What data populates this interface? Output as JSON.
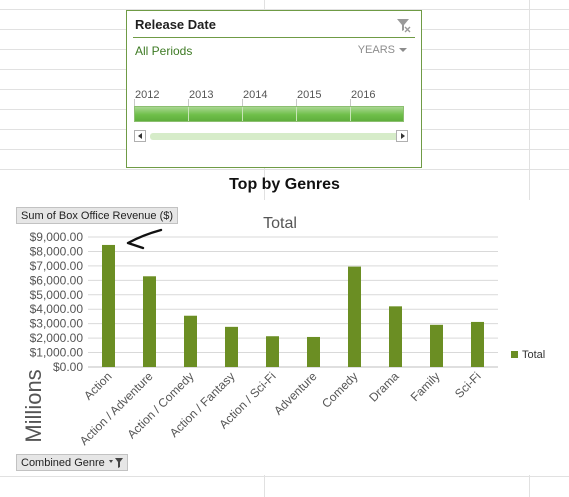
{
  "slicer": {
    "title": "Release Date",
    "period_label": "All Periods",
    "level_label": "YEARS",
    "years": [
      "2012",
      "2013",
      "2014",
      "2015",
      "2016"
    ]
  },
  "chart": {
    "heading": "Top by Genres",
    "values_field_button": "Sum of Box Office Revenue ($)",
    "axis_field_button": "Combined Genre",
    "display_units_label": "Millions"
  },
  "chart_data": {
    "type": "bar",
    "title": "Total",
    "xlabel": "",
    "ylabel": "",
    "ylim": [
      0,
      9000
    ],
    "yticks": [
      "$0.00",
      "$1,000.00",
      "$2,000.00",
      "$3,000.00",
      "$4,000.00",
      "$5,000.00",
      "$6,000.00",
      "$7,000.00",
      "$8,000.00",
      "$9,000.00"
    ],
    "categories": [
      "Action",
      "Action / Adventure",
      "Action / Comedy",
      "Action / Fantasy",
      "Action / Sci-Fi",
      "Adventure",
      "Comedy",
      "Drama",
      "Family",
      "Sci-Fi"
    ],
    "series": [
      {
        "name": "Total",
        "values": [
          8450,
          6280,
          3550,
          2780,
          2130,
          2080,
          6950,
          4200,
          2920,
          3120
        ]
      }
    ],
    "legend_position": "right",
    "grid": true,
    "bar_color": "#6b8e23"
  }
}
